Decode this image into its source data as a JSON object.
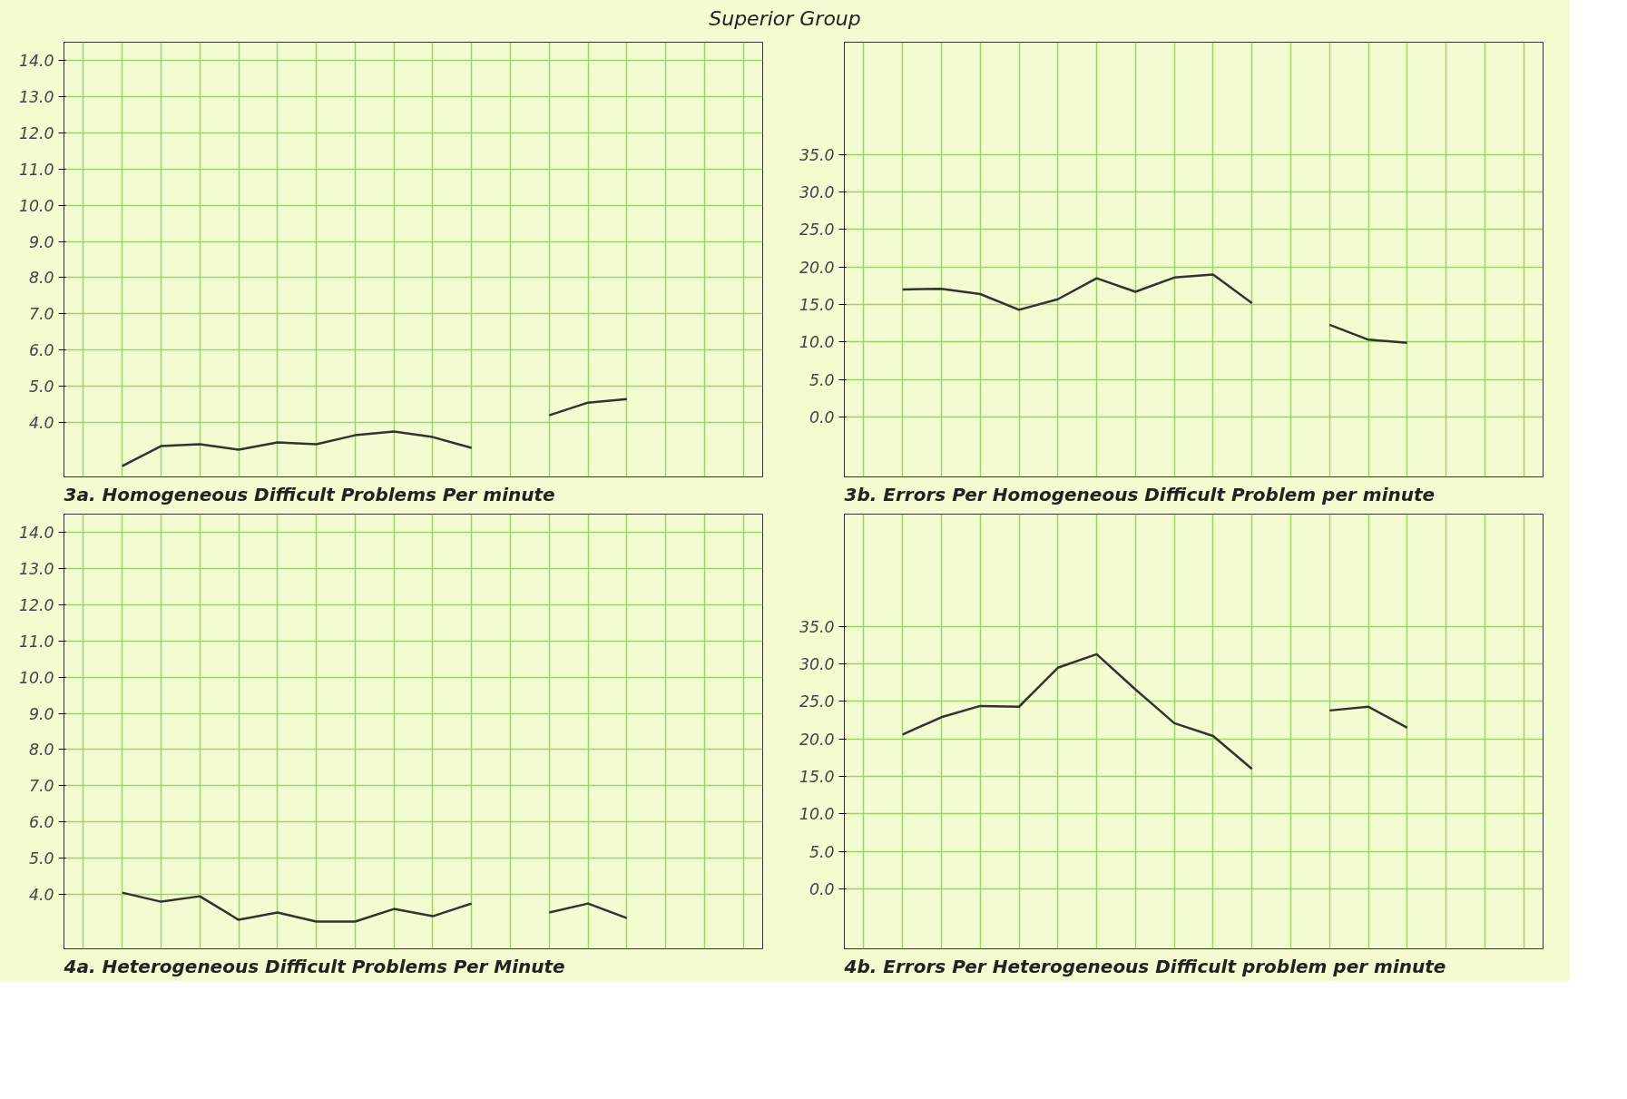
{
  "chart_data": [
    {
      "type": "line",
      "title": "3a. Homogeneous Difficult Problems Per minute",
      "annotations": [
        "Superior Group"
      ],
      "categories": [
        null,
        null,
        null,
        null,
        null,
        null,
        null,
        null,
        null,
        null,
        null,
        null,
        null,
        null,
        null,
        null,
        null,
        null
      ],
      "series": [
        {
          "color": "#333333",
          "values": [
            null,
            2.8,
            3.35,
            3.4,
            3.25,
            3.45,
            3.4,
            3.65,
            3.75,
            3.6,
            3.3,
            null,
            null,
            null,
            null,
            null,
            null,
            null
          ]
        },
        {
          "color": "#333333",
          "values": [
            null,
            null,
            null,
            null,
            null,
            null,
            null,
            null,
            null,
            null,
            null,
            null,
            4.2,
            4.55,
            4.65,
            null,
            null,
            null
          ]
        }
      ],
      "ylim": [
        2.5,
        14.5
      ],
      "yticks": [
        {
          "value": 4,
          "label": "4.0"
        },
        {
          "value": 5,
          "label": "5.0"
        },
        {
          "value": 6,
          "label": "6.0"
        },
        {
          "value": 7,
          "label": "7.0"
        },
        {
          "value": 8,
          "label": "8.0"
        },
        {
          "value": 9,
          "label": "9.0"
        },
        {
          "value": 10,
          "label": "10.0"
        },
        {
          "value": 11,
          "label": "11.0"
        },
        {
          "value": 12,
          "label": "12.0"
        },
        {
          "value": 13,
          "label": "13.0"
        },
        {
          "value": 14,
          "label": "14.0"
        }
      ],
      "grid": true,
      "tick_labels": "y",
      "marker": "none",
      "line_style": "solid"
    },
    {
      "type": "line",
      "title": "3b. Errors Per Homogeneous Difficult Problem per minute",
      "categories": [
        null,
        null,
        null,
        null,
        null,
        null,
        null,
        null,
        null,
        null,
        null,
        null,
        null,
        null,
        null,
        null,
        null,
        null
      ],
      "series": [
        {
          "color": "#333333",
          "values": [
            null,
            17.0,
            17.1,
            16.4,
            14.3,
            15.7,
            18.5,
            16.7,
            18.6,
            19.0,
            15.2,
            null,
            null,
            null,
            null,
            null,
            null,
            null
          ]
        },
        {
          "color": "#333333",
          "values": [
            null,
            null,
            null,
            null,
            null,
            null,
            null,
            null,
            null,
            null,
            null,
            null,
            12.3,
            10.3,
            9.9,
            null,
            null,
            null
          ]
        }
      ],
      "ylim": [
        -8,
        50
      ],
      "yticks": [
        {
          "value": 0,
          "label": "0.0"
        },
        {
          "value": 5,
          "label": "5.0"
        },
        {
          "value": 10,
          "label": "10.0"
        },
        {
          "value": 15,
          "label": "15.0"
        },
        {
          "value": 20,
          "label": "20.0"
        },
        {
          "value": 25,
          "label": "25.0"
        },
        {
          "value": 30,
          "label": "30.0"
        },
        {
          "value": 35,
          "label": "35.0"
        }
      ],
      "grid": true,
      "tick_labels": "y",
      "marker": "none",
      "line_style": "solid"
    },
    {
      "type": "line",
      "title": "4a. Heterogeneous Difficult Problems Per Minute",
      "categories": [
        null,
        null,
        null,
        null,
        null,
        null,
        null,
        null,
        null,
        null,
        null,
        null,
        null,
        null,
        null,
        null,
        null,
        null
      ],
      "series": [
        {
          "color": "#333333",
          "values": [
            null,
            4.05,
            3.8,
            3.95,
            3.3,
            3.5,
            3.25,
            3.25,
            3.6,
            3.4,
            3.75,
            null,
            null,
            null,
            null,
            null,
            null,
            null
          ]
        },
        {
          "color": "#333333",
          "values": [
            null,
            null,
            null,
            null,
            null,
            null,
            null,
            null,
            null,
            null,
            null,
            null,
            3.5,
            3.75,
            3.35,
            null,
            null,
            null
          ]
        }
      ],
      "ylim": [
        2.5,
        14.5
      ],
      "yticks": [
        {
          "value": 4,
          "label": "4.0"
        },
        {
          "value": 5,
          "label": "5.0"
        },
        {
          "value": 6,
          "label": "6.0"
        },
        {
          "value": 7,
          "label": "7.0"
        },
        {
          "value": 8,
          "label": "8.0"
        },
        {
          "value": 9,
          "label": "9.0"
        },
        {
          "value": 10,
          "label": "10.0"
        },
        {
          "value": 11,
          "label": "11.0"
        },
        {
          "value": 12,
          "label": "12.0"
        },
        {
          "value": 13,
          "label": "13.0"
        },
        {
          "value": 14,
          "label": "14.0"
        }
      ],
      "grid": true,
      "tick_labels": "y",
      "marker": "none",
      "line_style": "solid"
    },
    {
      "type": "line",
      "title": "4b. Errors Per Heterogeneous Difficult problem per minute",
      "categories": [
        null,
        null,
        null,
        null,
        null,
        null,
        null,
        null,
        null,
        null,
        null,
        null,
        null,
        null,
        null,
        null,
        null,
        null
      ],
      "series": [
        {
          "color": "#333333",
          "values": [
            null,
            20.6,
            22.9,
            24.4,
            24.3,
            29.5,
            31.3,
            26.6,
            22.1,
            20.4,
            16.0,
            null,
            null,
            null,
            null,
            null,
            null,
            null
          ]
        },
        {
          "color": "#333333",
          "values": [
            null,
            null,
            null,
            null,
            null,
            null,
            null,
            null,
            null,
            null,
            null,
            null,
            23.8,
            24.3,
            21.5,
            null,
            null,
            null
          ]
        }
      ],
      "ylim": [
        -8,
        50
      ],
      "yticks": [
        {
          "value": 0,
          "label": "0.0"
        },
        {
          "value": 5,
          "label": "5.0"
        },
        {
          "value": 10,
          "label": "10.0"
        },
        {
          "value": 15,
          "label": "15.0"
        },
        {
          "value": 20,
          "label": "20.0"
        },
        {
          "value": 25,
          "label": "25.0"
        },
        {
          "value": 30,
          "label": "30.0"
        },
        {
          "value": 35,
          "label": "35.0"
        }
      ],
      "grid": true,
      "tick_labels": "y",
      "marker": "none",
      "line_style": "solid"
    }
  ]
}
